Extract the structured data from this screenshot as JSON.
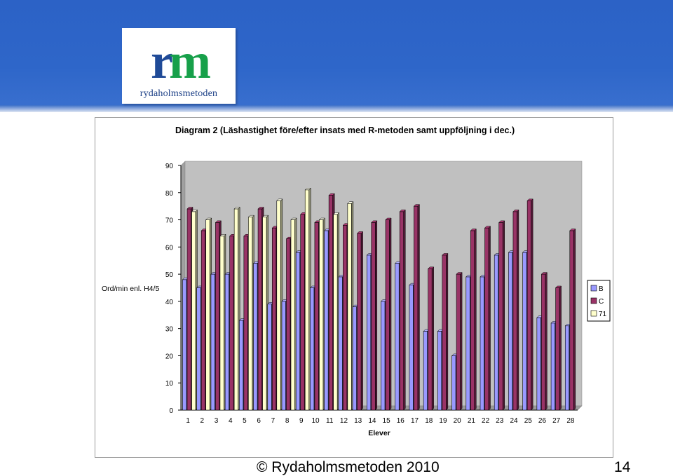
{
  "header": {
    "logo_mark_r": "r",
    "logo_mark_m": "m",
    "logo_text": "rydaholmsmetoden"
  },
  "footer": {
    "copyright": "© Rydaholmsmetoden 2010",
    "page_number": "14"
  },
  "chart_data": {
    "type": "bar",
    "title": "Diagram 2 (Läshastighet före/efter insats med R-metoden samt uppföljning i dec.)",
    "xlabel": "Elever",
    "ylabel": "Ord/min enl. H4/5",
    "ylim": [
      0,
      90
    ],
    "yticks": [
      0,
      10,
      20,
      30,
      40,
      50,
      60,
      70,
      80,
      90
    ],
    "grid": false,
    "legend_position": "right",
    "categories": [
      "1",
      "2",
      "3",
      "4",
      "5",
      "6",
      "7",
      "8",
      "9",
      "10",
      "11",
      "12",
      "13",
      "14",
      "15",
      "16",
      "17",
      "18",
      "19",
      "20",
      "21",
      "22",
      "23",
      "24",
      "25",
      "26",
      "27",
      "28"
    ],
    "series": [
      {
        "name": "B",
        "color": "#9999ff",
        "values": [
          48,
          45,
          50,
          50,
          33,
          54,
          39,
          40,
          58,
          45,
          66,
          49,
          38,
          57,
          40,
          54,
          46,
          29,
          29,
          20,
          49,
          49,
          57,
          58,
          58,
          34,
          32,
          31
        ]
      },
      {
        "name": "C",
        "color": "#993366",
        "values": [
          74,
          66,
          69,
          64,
          64,
          74,
          67,
          63,
          72,
          69,
          79,
          68,
          65,
          69,
          70,
          73,
          75,
          52,
          57,
          50,
          66,
          67,
          69,
          73,
          77,
          50,
          45,
          66
        ]
      },
      {
        "name": "71",
        "color": "#ffffcc",
        "values": [
          73,
          70,
          64,
          74,
          71,
          71,
          77,
          70,
          81,
          70,
          72,
          76,
          null,
          null,
          null,
          null,
          null,
          null,
          null,
          null,
          null,
          null,
          null,
          null,
          null,
          null,
          null,
          null
        ]
      }
    ]
  }
}
